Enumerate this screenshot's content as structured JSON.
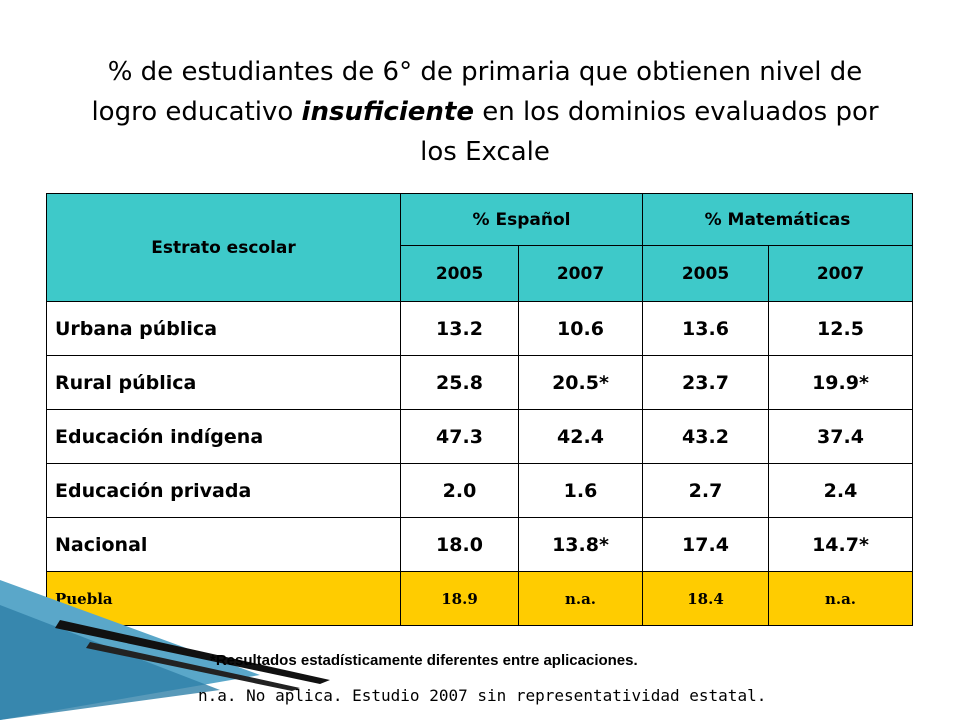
{
  "title": {
    "line1": "% de estudiantes de 6° de primaria que obtienen nivel de",
    "line2_pre": "logro educativo ",
    "line2_em": "insuficiente",
    "line2_post": " en los dominios evaluados por",
    "line3": "los Excale"
  },
  "table": {
    "header": {
      "stratum": "Estrato escolar",
      "group_spanish": "% Español",
      "group_math": "% Matemáticas",
      "years": [
        "2005",
        "2007",
        "2005",
        "2007"
      ]
    },
    "rows": [
      {
        "label": "Urbana pública",
        "values": [
          "13.2",
          "10.6",
          "13.6",
          "12.5"
        ]
      },
      {
        "label": "Rural pública",
        "values": [
          "25.8",
          "20.5*",
          "23.7",
          "19.9*"
        ]
      },
      {
        "label": "Educación indígena",
        "values": [
          "47.3",
          "42.4",
          "43.2",
          "37.4"
        ]
      },
      {
        "label": "Educación privada",
        "values": [
          "2.0",
          "1.6",
          "2.7",
          "2.4"
        ]
      },
      {
        "label": "Nacional",
        "values": [
          "18.0",
          "13.8*",
          "17.4",
          "14.7*"
        ]
      },
      {
        "label": "Puebla",
        "values": [
          "18.9",
          "n.a.",
          "18.4",
          "n.a."
        ]
      }
    ]
  },
  "notes": {
    "significance": "*Resultados estadísticamente diferentes entre aplicaciones.",
    "na": "n.a. No aplica. Estudio 2007 sin representatividad estatal."
  },
  "colors": {
    "header_bg": "#3ec9c9",
    "highlight_bg": "#ffcc00"
  }
}
